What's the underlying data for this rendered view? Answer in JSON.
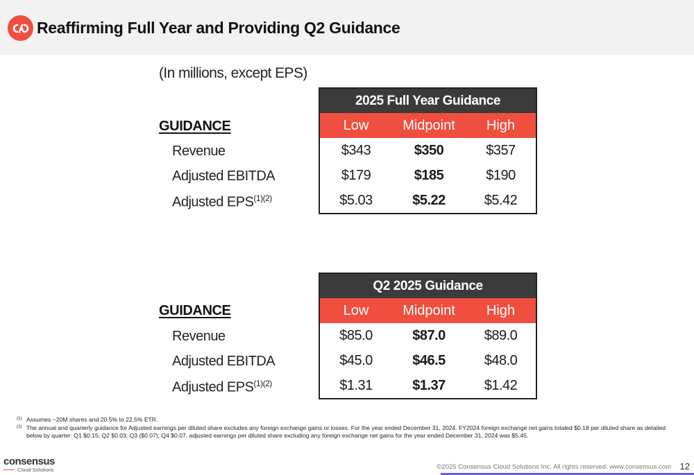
{
  "header": {
    "title": "Reaffirming Full Year and Providing Q2 Guidance"
  },
  "units_note": "(In millions, except EPS)",
  "full_year": {
    "section_label": "GUIDANCE",
    "table_title": "2025 Full Year Guidance",
    "columns": [
      "Low",
      "Midpoint",
      "High"
    ],
    "rows": [
      {
        "label": "Revenue",
        "values": [
          "$343",
          "$350",
          "$357"
        ]
      },
      {
        "label": "Adjusted EBITDA",
        "values": [
          "$179",
          "$185",
          "$190"
        ]
      },
      {
        "label": "Adjusted EPS",
        "sup": "(1)(2)",
        "values": [
          "$5.03",
          "$5.22",
          "$5.42"
        ]
      }
    ]
  },
  "q2": {
    "section_label": "GUIDANCE",
    "table_title": "Q2 2025 Guidance",
    "columns": [
      "Low",
      "Midpoint",
      "High"
    ],
    "rows": [
      {
        "label": "Revenue",
        "values": [
          "$85.0",
          "$87.0",
          "$89.0"
        ]
      },
      {
        "label": "Adjusted EBITDA",
        "values": [
          "$45.0",
          "$46.5",
          "$48.0"
        ]
      },
      {
        "label": "Adjusted EPS",
        "sup": "(1)(2)",
        "values": [
          "$1.31",
          "$1.37",
          "$1.42"
        ]
      }
    ]
  },
  "footnotes": [
    {
      "mark": "(1)",
      "text": "Assumes ~20M shares and 20.5% to 22.5% ETR."
    },
    {
      "mark": "(2)",
      "text": "The annual and quarterly guidance for Adjusted earnings per diluted share excludes any foreign exchange gains or losses. For the year ended December 31, 2024. FY2024 foreign exchange net gains totaled $0.18 per diluted share as detailed below by quarter: Q1 $0.15; Q2 $0.03; Q3 ($0.07); Q4 $0.07, adjusted earnings per diluted share excluding any foreign exchange net gains for the year ended December 31, 2024 was $5.45."
    }
  ],
  "footer": {
    "brand": "consensus",
    "brand_sub": "Cloud Solutions",
    "copyright": "©2025 Consensus Cloud Solutions Inc. All rights reserved. www.consensus.com",
    "page_number": "12"
  },
  "colors": {
    "accent": "#f04e3e",
    "table_header": "#3b3b3b",
    "bar": "#6b5fd6"
  },
  "icons": {
    "logo": "consensus-logo-icon"
  }
}
